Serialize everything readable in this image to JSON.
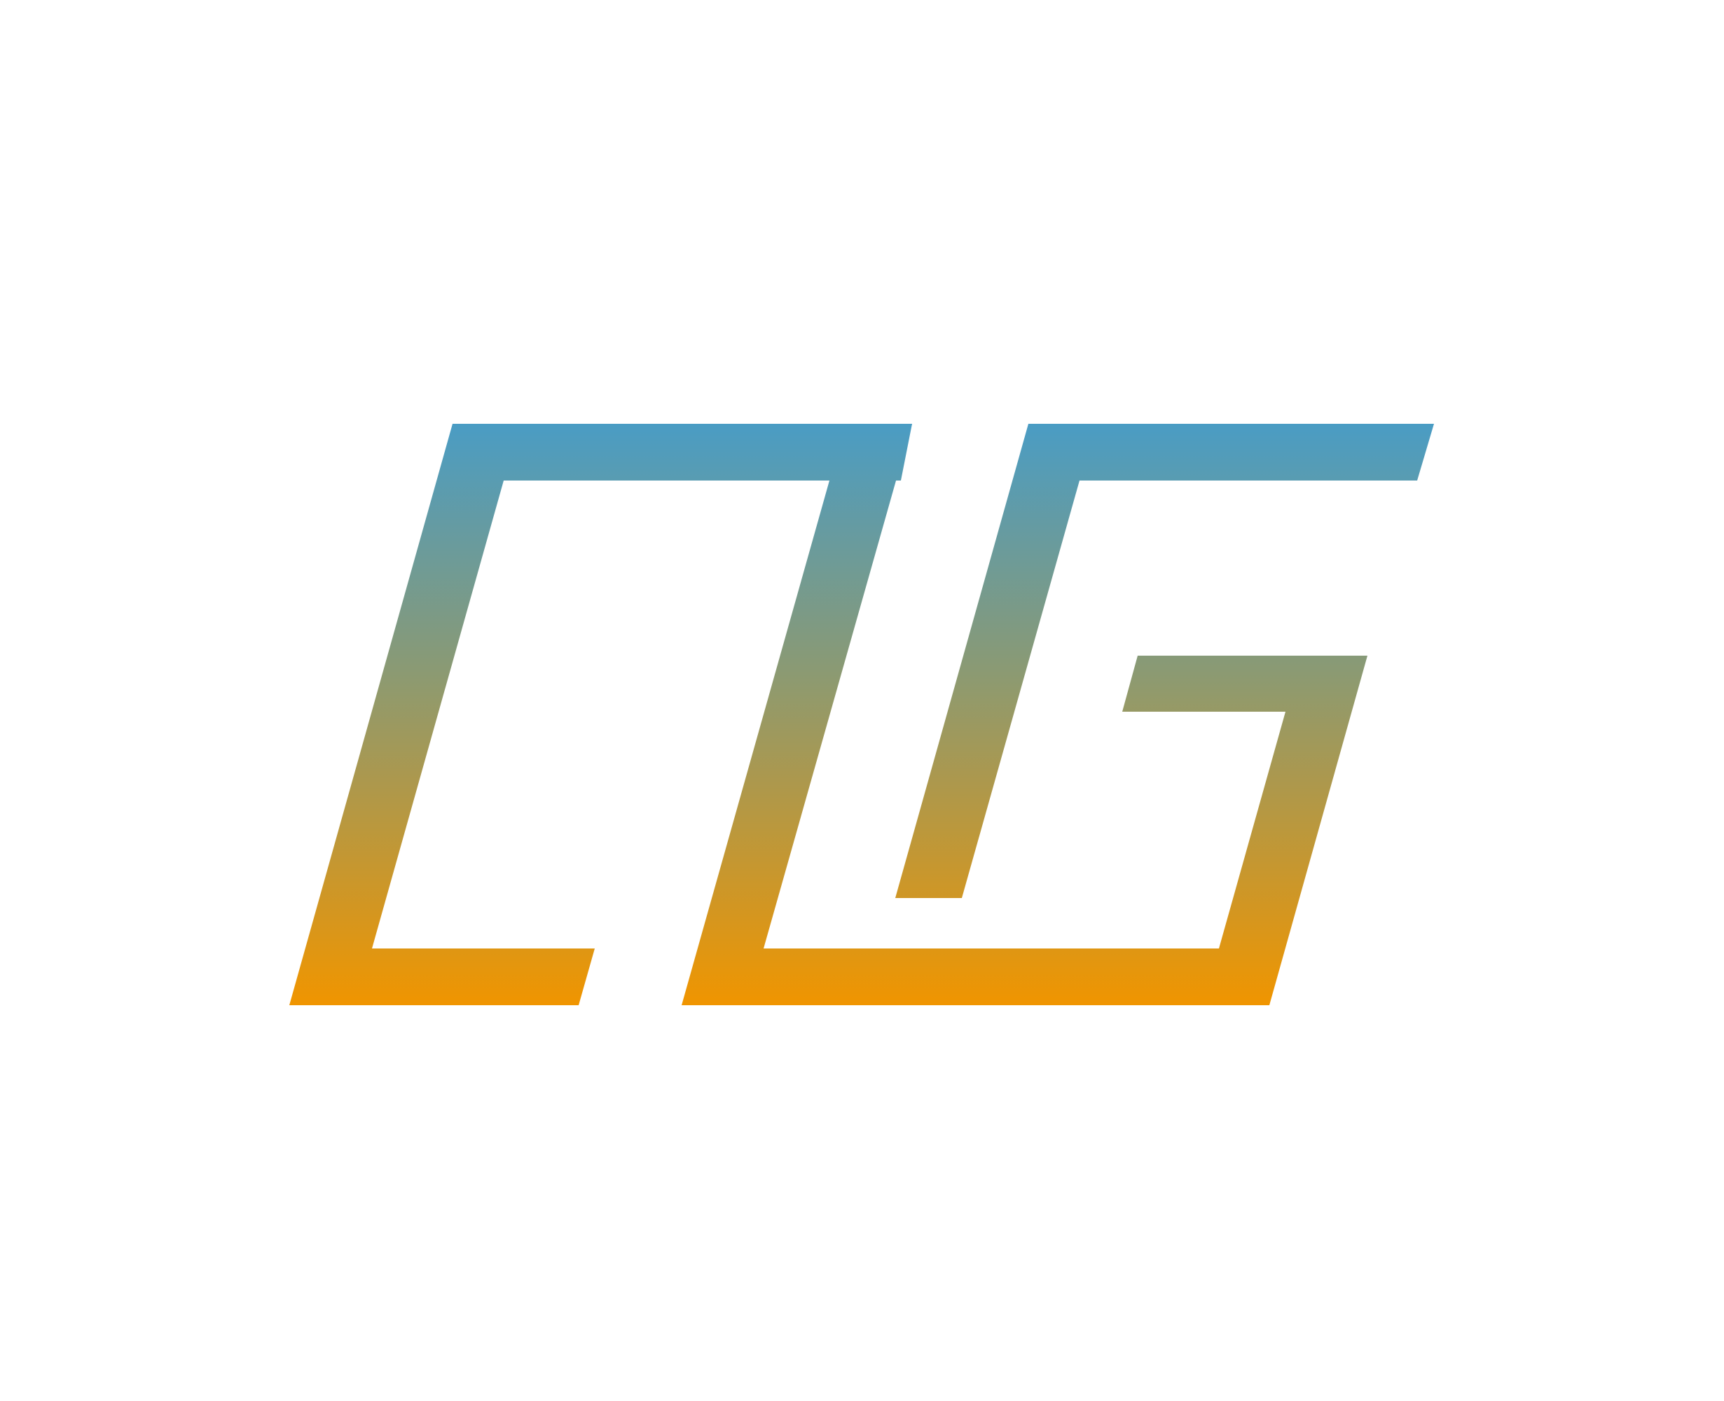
{
  "logo": {
    "name": "monogram-logo",
    "gradient": {
      "top_color": "#4a9cc4",
      "bottom_color": "#f09500"
    },
    "background_color": "#ffffff"
  }
}
